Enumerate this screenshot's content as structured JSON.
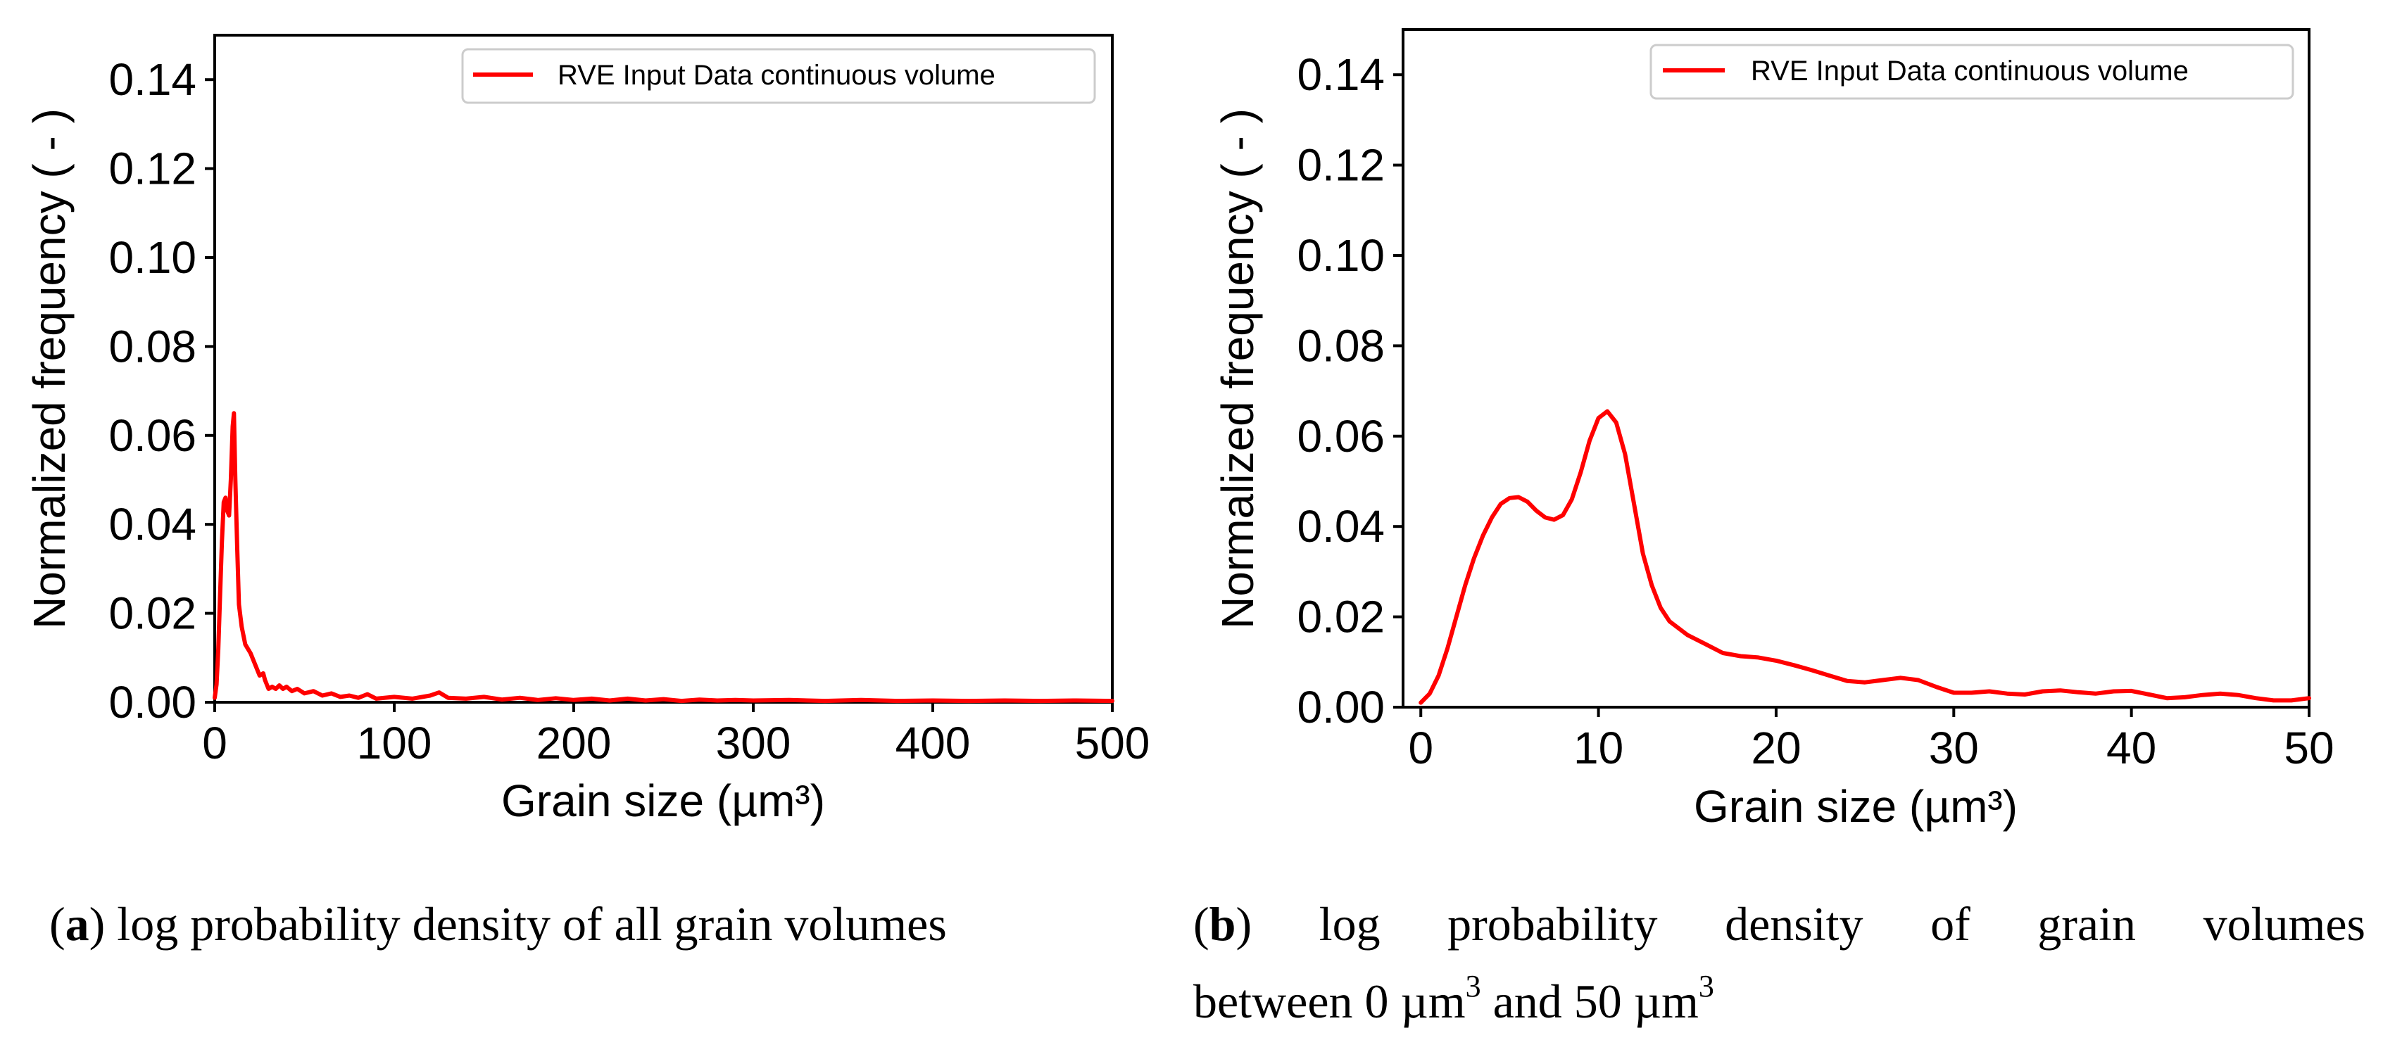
{
  "colors": {
    "line": "#ff0000",
    "axis": "#000000",
    "legend_border": "#cccccc"
  },
  "chart_data": [
    {
      "type": "line",
      "xlabel": "Grain size (µm³)",
      "ylabel": "Normalized frequency ( - )",
      "xlim": [
        0,
        500
      ],
      "ylim": [
        0,
        0.15
      ],
      "xticks": [
        0,
        100,
        200,
        300,
        400,
        500
      ],
      "xtick_labels": [
        "0",
        "100",
        "200",
        "300",
        "400",
        "500"
      ],
      "yticks": [
        0,
        0.02,
        0.04,
        0.06,
        0.08,
        0.1,
        0.12,
        0.14
      ],
      "ytick_labels": [
        "0.00",
        "0.02",
        "0.04",
        "0.06",
        "0.08",
        "0.10",
        "0.12",
        "0.14"
      ],
      "grid": false,
      "legend_position": "top-right",
      "series": [
        {
          "name": "RVE Input Data continuous volume",
          "color": "#ff0000",
          "x": [
            0,
            1,
            2,
            3,
            4,
            5,
            6,
            7,
            8,
            9,
            10,
            10.7,
            11.5,
            12.5,
            13.5,
            15,
            17,
            20,
            22,
            25,
            27,
            28,
            30,
            32,
            34,
            36,
            38,
            40,
            43,
            46,
            50,
            55,
            60,
            65,
            70,
            75,
            80,
            85,
            90,
            100,
            110,
            120,
            125,
            130,
            140,
            150,
            160,
            170,
            180,
            190,
            200,
            210,
            220,
            230,
            240,
            250,
            260,
            270,
            280,
            290,
            300,
            320,
            340,
            360,
            380,
            400,
            420,
            440,
            460,
            480,
            500
          ],
          "y": [
            0.001,
            0.004,
            0.012,
            0.024,
            0.036,
            0.045,
            0.046,
            0.043,
            0.042,
            0.05,
            0.062,
            0.065,
            0.05,
            0.035,
            0.022,
            0.017,
            0.013,
            0.011,
            0.009,
            0.006,
            0.0065,
            0.005,
            0.003,
            0.0035,
            0.003,
            0.0038,
            0.003,
            0.0035,
            0.0025,
            0.003,
            0.002,
            0.0025,
            0.0015,
            0.002,
            0.0012,
            0.0015,
            0.001,
            0.0018,
            0.0008,
            0.0012,
            0.0008,
            0.0015,
            0.0022,
            0.001,
            0.0008,
            0.0012,
            0.0006,
            0.001,
            0.0005,
            0.0009,
            0.0005,
            0.0008,
            0.0004,
            0.0008,
            0.0004,
            0.0007,
            0.0003,
            0.0006,
            0.0004,
            0.0005,
            0.0004,
            0.0005,
            0.0003,
            0.0005,
            0.0003,
            0.0004,
            0.0003,
            0.0004,
            0.0003,
            0.0004,
            0.0003
          ]
        }
      ],
      "caption": {
        "letter": "a",
        "text": ") log probability density of all grain volumes"
      }
    },
    {
      "type": "line",
      "xlabel": "Grain size (µm³)",
      "ylabel": "Normalized frequency ( - )",
      "xlim": [
        -1,
        50
      ],
      "ylim": [
        0,
        0.15
      ],
      "xticks": [
        0,
        10,
        20,
        30,
        40,
        50
      ],
      "xtick_labels": [
        "0",
        "10",
        "20",
        "30",
        "40",
        "50"
      ],
      "yticks": [
        0,
        0.02,
        0.04,
        0.06,
        0.08,
        0.1,
        0.12,
        0.14
      ],
      "ytick_labels": [
        "0.00",
        "0.02",
        "0.04",
        "0.06",
        "0.08",
        "0.10",
        "0.12",
        "0.14"
      ],
      "grid": false,
      "legend_position": "top-right",
      "series": [
        {
          "name": "RVE Input Data continuous volume",
          "color": "#ff0000",
          "x": [
            0,
            0.5,
            1,
            1.5,
            2,
            2.5,
            3,
            3.5,
            4,
            4.5,
            5,
            5.5,
            6,
            6.5,
            7,
            7.5,
            8,
            8.5,
            9,
            9.5,
            10,
            10.5,
            11,
            11.5,
            12,
            12.5,
            13,
            13.5,
            14,
            15,
            16,
            17,
            18,
            19,
            20,
            21,
            22,
            23,
            24,
            25,
            26,
            27,
            28,
            29,
            30,
            31,
            32,
            33,
            34,
            35,
            36,
            37,
            38,
            39,
            40,
            41,
            42,
            43,
            44,
            45,
            46,
            47,
            48,
            49,
            50
          ],
          "y": [
            0.001,
            0.003,
            0.007,
            0.013,
            0.02,
            0.027,
            0.033,
            0.038,
            0.042,
            0.045,
            0.0463,
            0.0465,
            0.0455,
            0.0435,
            0.042,
            0.0415,
            0.0425,
            0.046,
            0.052,
            0.059,
            0.064,
            0.0655,
            0.063,
            0.056,
            0.045,
            0.034,
            0.027,
            0.022,
            0.019,
            0.016,
            0.014,
            0.012,
            0.0113,
            0.011,
            0.0103,
            0.0093,
            0.0082,
            0.007,
            0.0058,
            0.0055,
            0.006,
            0.0065,
            0.006,
            0.0045,
            0.0032,
            0.0032,
            0.0035,
            0.003,
            0.0028,
            0.0035,
            0.0037,
            0.0033,
            0.003,
            0.0035,
            0.0036,
            0.0028,
            0.002,
            0.0022,
            0.0027,
            0.003,
            0.0027,
            0.002,
            0.0015,
            0.0015,
            0.002
          ]
        }
      ],
      "caption": {
        "letter": "b",
        "line1": ") log probability density of grain volumes",
        "line2_prefix": "between 0 µm",
        "sup1": "3",
        "line2_mid": " and 50 µm",
        "sup2": "3"
      }
    }
  ]
}
